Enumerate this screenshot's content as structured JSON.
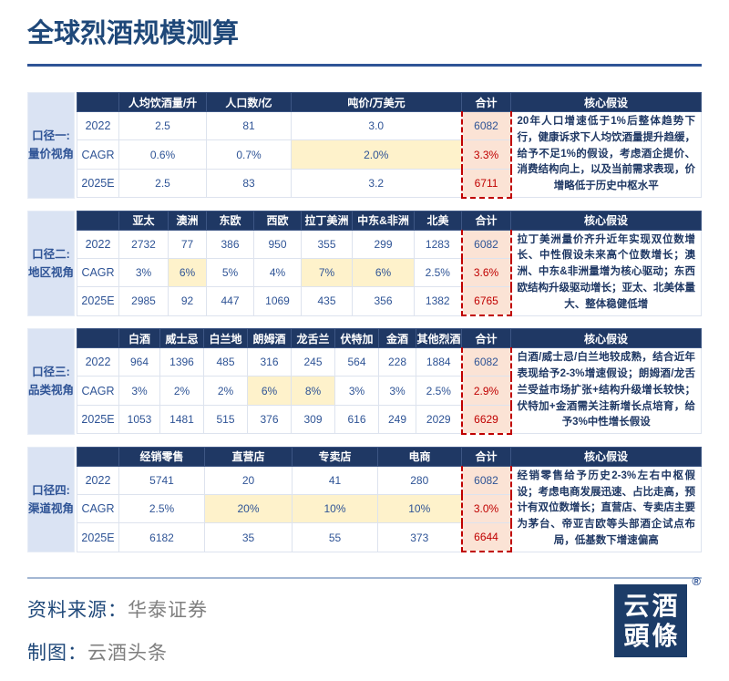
{
  "title": "全球烈酒规模测算",
  "colors": {
    "header_navy": "#1f3864",
    "value_blue": "#2f5496",
    "alert_red": "#c00000",
    "highlight_yellow": "#fef2cb",
    "total_pink": "#fbe3d5",
    "label_bg": "#dae3f3",
    "title_blue": "#1f4879",
    "footer_gray": "#7f7f7f"
  },
  "chart_data": {
    "type": "table",
    "title": "全球烈酒规模测算",
    "tables": [
      {
        "caliber_line1": "口径一:",
        "caliber_line2": "量价视角",
        "columns": [
          "人均饮酒量/升",
          "人口数/亿",
          "吨价/万美元"
        ],
        "total_label": "合计",
        "assumption_label": "核心假设",
        "rows": [
          {
            "header": "2022",
            "cells": [
              {
                "v": "2.5"
              },
              {
                "v": "81"
              },
              {
                "v": "3.0"
              }
            ],
            "total": {
              "v": "6082",
              "red": false
            }
          },
          {
            "header": "CAGR",
            "cells": [
              {
                "v": "0.6%"
              },
              {
                "v": "0.7%"
              },
              {
                "v": "2.0%",
                "hl": true
              }
            ],
            "total": {
              "v": "3.3%",
              "red": true
            }
          },
          {
            "header": "2025E",
            "cells": [
              {
                "v": "2.5"
              },
              {
                "v": "83"
              },
              {
                "v": "3.2"
              }
            ],
            "total": {
              "v": "6711",
              "red": true
            }
          }
        ],
        "assumption": "20年人口增速低于1%后整体趋势下行，健康诉求下人均饮酒量提升趋缓，给予不足1%的假设，考虑酒企提价、消费结构向上，以及当前需求表现，价增略低于历史中枢水平"
      },
      {
        "caliber_line1": "口径二:",
        "caliber_line2": "地区视角",
        "columns": [
          "亚太",
          "澳洲",
          "东欧",
          "西欧",
          "拉丁美洲",
          "中东&非洲",
          "北美"
        ],
        "total_label": "合计",
        "assumption_label": "核心假设",
        "rows": [
          {
            "header": "2022",
            "cells": [
              {
                "v": "2732"
              },
              {
                "v": "77"
              },
              {
                "v": "386"
              },
              {
                "v": "950"
              },
              {
                "v": "355"
              },
              {
                "v": "299"
              },
              {
                "v": "1283"
              }
            ],
            "total": {
              "v": "6082",
              "red": false
            }
          },
          {
            "header": "CAGR",
            "cells": [
              {
                "v": "3%"
              },
              {
                "v": "6%",
                "hl": true
              },
              {
                "v": "5%"
              },
              {
                "v": "4%"
              },
              {
                "v": "7%",
                "hl": true
              },
              {
                "v": "6%",
                "hl": true
              },
              {
                "v": "2.5%"
              }
            ],
            "total": {
              "v": "3.6%",
              "red": true
            }
          },
          {
            "header": "2025E",
            "cells": [
              {
                "v": "2985"
              },
              {
                "v": "92"
              },
              {
                "v": "447"
              },
              {
                "v": "1069"
              },
              {
                "v": "435"
              },
              {
                "v": "356"
              },
              {
                "v": "1382"
              }
            ],
            "total": {
              "v": "6765",
              "red": true
            }
          }
        ],
        "assumption": "拉丁美洲量价齐升近年实现双位数增长、中性假设未来高个位数增长；澳洲、中东&非洲量增为核心驱动；东西欧结构升级驱动增长；亚太、北美体量大、整体稳健低增"
      },
      {
        "caliber_line1": "口径三:",
        "caliber_line2": "品类视角",
        "columns": [
          "白酒",
          "威士忌",
          "白兰地",
          "朗姆酒",
          "龙舌兰",
          "伏特加",
          "金酒",
          "其他烈酒"
        ],
        "total_label": "合计",
        "assumption_label": "核心假设",
        "rows": [
          {
            "header": "2022",
            "cells": [
              {
                "v": "964"
              },
              {
                "v": "1396"
              },
              {
                "v": "485"
              },
              {
                "v": "316"
              },
              {
                "v": "245"
              },
              {
                "v": "564"
              },
              {
                "v": "228"
              },
              {
                "v": "1884"
              }
            ],
            "total": {
              "v": "6082",
              "red": false
            }
          },
          {
            "header": "CAGR",
            "cells": [
              {
                "v": "3%"
              },
              {
                "v": "2%"
              },
              {
                "v": "2%"
              },
              {
                "v": "6%",
                "hl": true
              },
              {
                "v": "8%",
                "hl": true
              },
              {
                "v": "3%"
              },
              {
                "v": "3%"
              },
              {
                "v": "2.5%"
              }
            ],
            "total": {
              "v": "2.9%",
              "red": true
            }
          },
          {
            "header": "2025E",
            "cells": [
              {
                "v": "1053"
              },
              {
                "v": "1481"
              },
              {
                "v": "515"
              },
              {
                "v": "376"
              },
              {
                "v": "309"
              },
              {
                "v": "616"
              },
              {
                "v": "249"
              },
              {
                "v": "2029"
              }
            ],
            "total": {
              "v": "6629",
              "red": true
            }
          }
        ],
        "assumption": "白酒/威士忌/白兰地较成熟，结合近年表现给予2-3%增速假设；朗姆酒/龙舌兰受益市场扩张+结构升级增长较快；伏特加+金酒需关注新增长点培育，给予3%中性增长假设"
      },
      {
        "caliber_line1": "口径四:",
        "caliber_line2": "渠道视角",
        "columns": [
          "经销零售",
          "直营店",
          "专卖店",
          "电商"
        ],
        "total_label": "合计",
        "assumption_label": "核心假设",
        "rows": [
          {
            "header": "2022",
            "cells": [
              {
                "v": "5741"
              },
              {
                "v": "20"
              },
              {
                "v": "41"
              },
              {
                "v": "280"
              }
            ],
            "total": {
              "v": "6082",
              "red": false
            }
          },
          {
            "header": "CAGR",
            "cells": [
              {
                "v": "2.5%"
              },
              {
                "v": "20%",
                "hl": true
              },
              {
                "v": "10%",
                "hl": true
              },
              {
                "v": "10%",
                "hl": true
              }
            ],
            "total": {
              "v": "3.0%",
              "red": true
            }
          },
          {
            "header": "2025E",
            "cells": [
              {
                "v": "6182"
              },
              {
                "v": "35"
              },
              {
                "v": "55"
              },
              {
                "v": "373"
              }
            ],
            "total": {
              "v": "6644",
              "red": true
            }
          }
        ],
        "assumption": "经销零售给予历史2-3%左右中枢假设；考虑电商发展迅速、占比走高，预计有双位数增长；直营店、专卖店主要为茅台、帝亚吉欧等头部酒企试点布局，低基数下增速偏高"
      }
    ]
  },
  "footer": {
    "source_label": "资料来源：",
    "source_value": "华泰证券",
    "credit_label": "制图：",
    "credit_value": "云酒头条",
    "logo_line1": "云酒",
    "logo_line2": "頭條",
    "registered": "®"
  }
}
